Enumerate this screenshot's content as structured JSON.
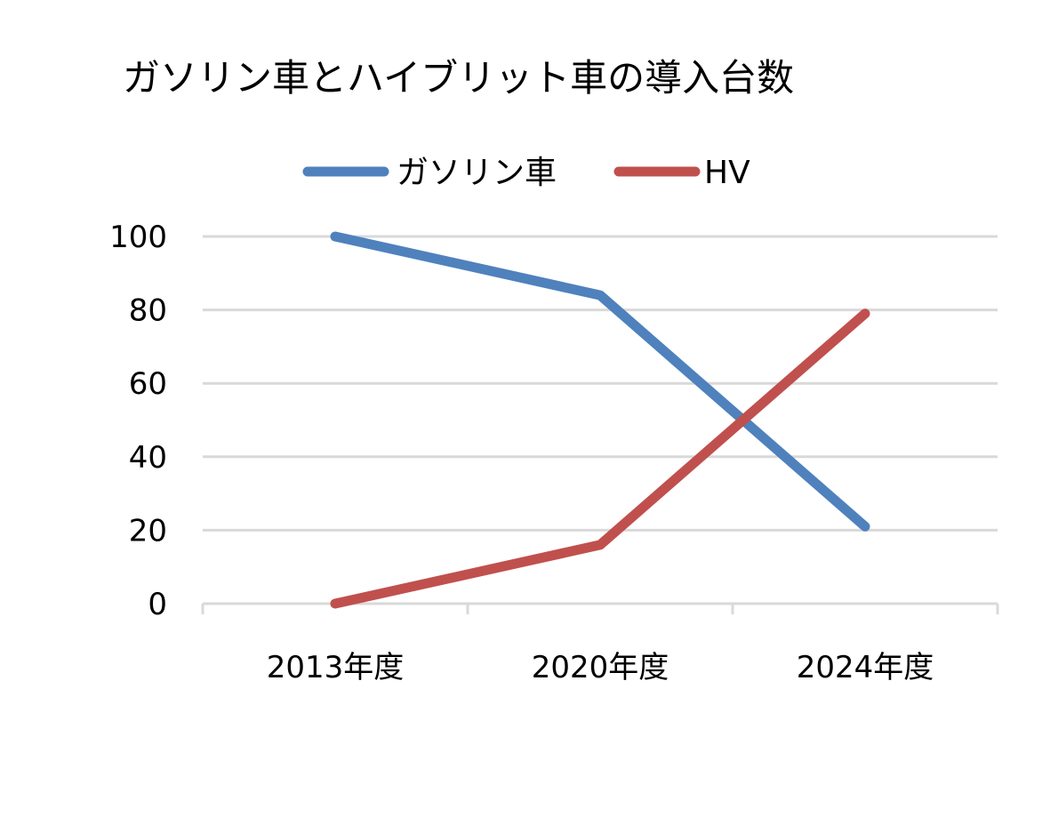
{
  "chart_data": {
    "type": "line",
    "title": "ガソリン車とハイブリット車の導入台数",
    "categories": [
      "2013年度",
      "2020年度",
      "2024年度"
    ],
    "series": [
      {
        "name": "ガソリン車",
        "values": [
          100,
          84,
          21
        ],
        "color": "#4f81bd"
      },
      {
        "name": "HV",
        "values": [
          0,
          16,
          79
        ],
        "color": "#c0504d"
      }
    ],
    "ylim": [
      0,
      100
    ],
    "yticks": [
      0,
      20,
      40,
      60,
      80,
      100
    ],
    "grid": true,
    "legend_position": "top",
    "gridline_color": "#d9d9d9"
  }
}
